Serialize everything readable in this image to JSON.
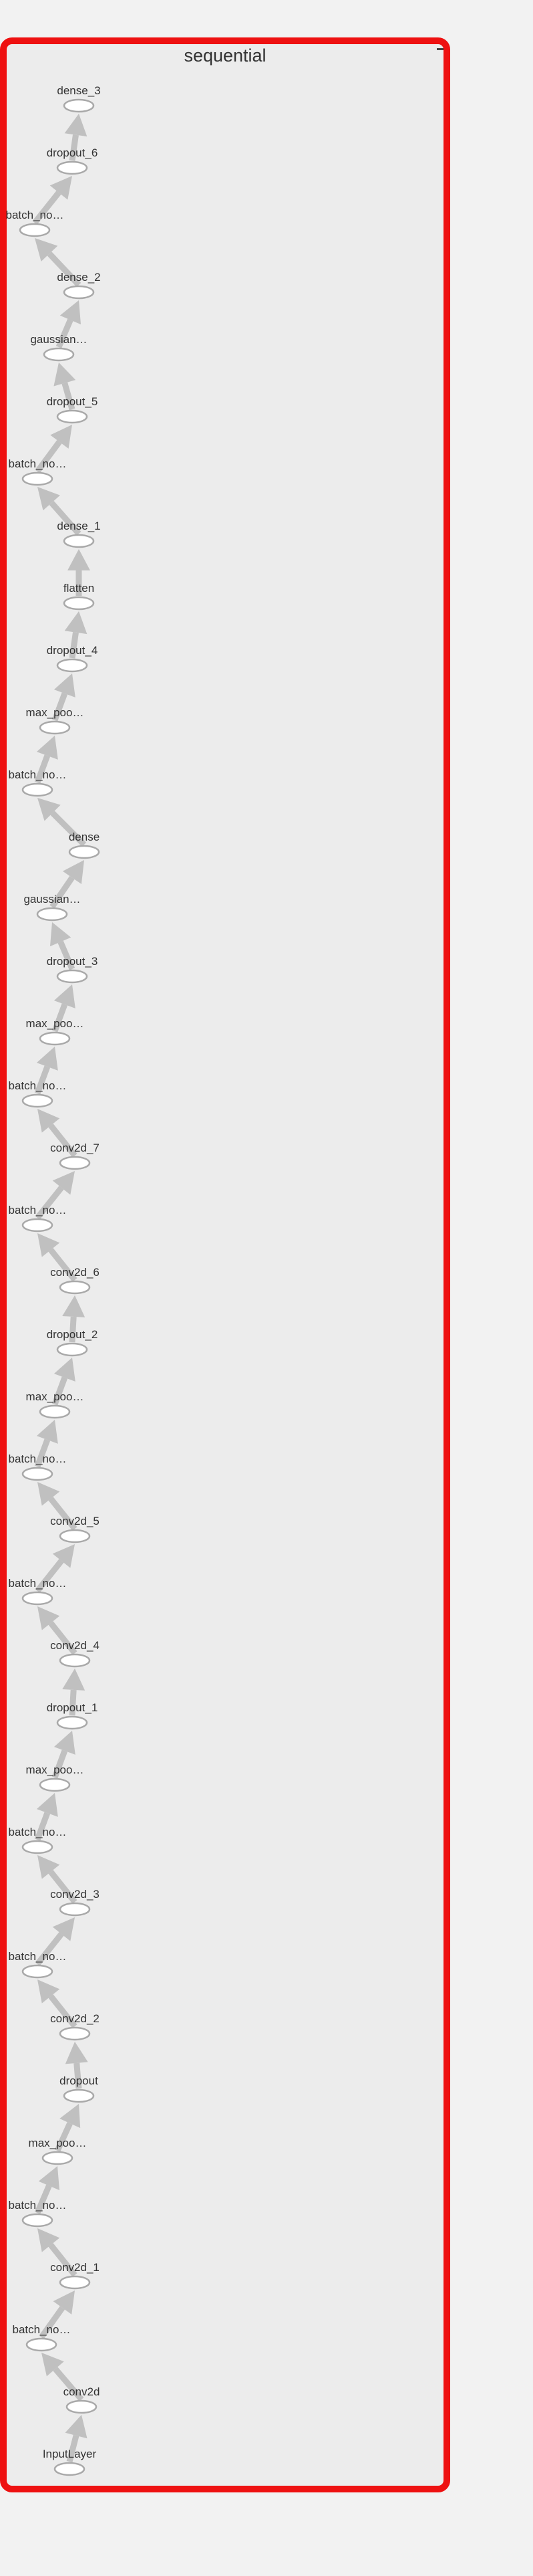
{
  "graph": {
    "title": "sequential",
    "nodes": [
      "dense_3",
      "dropout_6",
      "batch_no…",
      "dense_2",
      "gaussian…",
      "dropout_5",
      "batch_no…",
      "dense_1",
      "flatten",
      "dropout_4",
      "max_poo…",
      "batch_no…",
      "dense",
      "gaussian…",
      "dropout_3",
      "max_poo…",
      "batch_no…",
      "conv2d_7",
      "batch_no…",
      "conv2d_6",
      "dropout_2",
      "max_poo…",
      "batch_no…",
      "conv2d_5",
      "batch_no…",
      "conv2d_4",
      "dropout_1",
      "max_poo…",
      "batch_no…",
      "conv2d_3",
      "batch_no…",
      "conv2d_2",
      "dropout",
      "max_poo…",
      "batch_no…",
      "conv2d_1",
      "batch_no…",
      "conv2d",
      "InputLayer"
    ],
    "colors": {
      "border": "#ee1111",
      "panel": "#ececec",
      "edge": "#c0c0c0",
      "node_fill": "#ffffff",
      "node_stroke": "#a9a9a9",
      "text": "#333333"
    }
  }
}
